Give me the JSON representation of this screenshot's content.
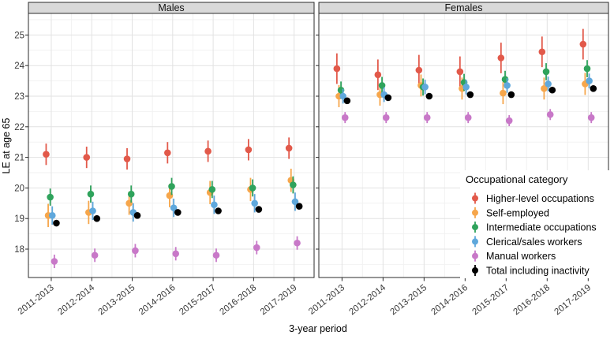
{
  "chart_data": {
    "type": "scatter",
    "subtype": "dodged pointrange with error bars, faceted",
    "title": "",
    "facets": [
      "Males",
      "Females"
    ],
    "categories": [
      "2011-2013",
      "2012-2014",
      "2013-2015",
      "2014-2016",
      "2015-2017",
      "2016-2018",
      "2017-2019"
    ],
    "xlabel": "3-year period",
    "ylabel": "LE at age 65",
    "ylim": [
      17.1,
      25.7
    ],
    "y_ticks": [
      18,
      19,
      20,
      21,
      22,
      23,
      24,
      25
    ],
    "grid": "major and minor gridlines on, white panel background, gray facet strips",
    "legend": {
      "title": "Occupational category",
      "position": "inside bottom-right of Females panel",
      "items": [
        {
          "label": "Higher-level occupations",
          "color": "#e2594a"
        },
        {
          "label": "Self-employed",
          "color": "#f6a64b"
        },
        {
          "label": "Intermediate occupations",
          "color": "#2fa35c"
        },
        {
          "label": "Clerical/sales workers",
          "color": "#5fa8dc"
        },
        {
          "label": "Manual workers",
          "color": "#c878c8"
        },
        {
          "label": "Total including inactivity",
          "color": "#000000"
        }
      ]
    },
    "panels": [
      {
        "facet": "Males",
        "series": [
          {
            "name": "Higher-level occupations",
            "color": "#e2594a",
            "values": [
              21.1,
              21.0,
              20.95,
              21.15,
              21.2,
              21.25,
              21.3
            ],
            "ci": 0.35
          },
          {
            "name": "Self-employed",
            "color": "#f6a64b",
            "values": [
              19.1,
              19.2,
              19.5,
              19.75,
              19.85,
              19.95,
              20.25
            ],
            "ci": 0.38
          },
          {
            "name": "Intermediate occupations",
            "color": "#2fa35c",
            "values": [
              19.7,
              19.8,
              19.8,
              20.05,
              19.95,
              20.0,
              20.1
            ],
            "ci": 0.28
          },
          {
            "name": "Clerical/sales workers",
            "color": "#5fa8dc",
            "values": [
              19.1,
              19.25,
              19.2,
              19.35,
              19.45,
              19.5,
              19.55
            ],
            "ci": 0.3
          },
          {
            "name": "Manual workers",
            "color": "#c878c8",
            "values": [
              17.6,
              17.8,
              17.95,
              17.85,
              17.8,
              18.05,
              18.2
            ],
            "ci": 0.22
          },
          {
            "name": "Total including inactivity",
            "color": "#000000",
            "values": [
              18.85,
              19.0,
              19.1,
              19.2,
              19.25,
              19.3,
              19.4
            ],
            "ci": 0.09
          }
        ]
      },
      {
        "facet": "Females",
        "series": [
          {
            "name": "Higher-level occupations",
            "color": "#e2594a",
            "values": [
              23.9,
              23.7,
              23.85,
              23.8,
              24.25,
              24.45,
              24.7
            ],
            "ci": 0.5
          },
          {
            "name": "Self-employed",
            "color": "#f6a64b",
            "values": [
              23.0,
              23.05,
              23.35,
              23.25,
              23.1,
              23.25,
              23.4
            ],
            "ci": 0.36
          },
          {
            "name": "Intermediate occupations",
            "color": "#2fa35c",
            "values": [
              23.2,
              23.35,
              23.3,
              23.45,
              23.55,
              23.8,
              23.9
            ],
            "ci": 0.28
          },
          {
            "name": "Clerical/sales workers",
            "color": "#5fa8dc",
            "values": [
              23.0,
              23.05,
              23.3,
              23.3,
              23.35,
              23.4,
              23.5
            ],
            "ci": 0.24
          },
          {
            "name": "Manual workers",
            "color": "#c878c8",
            "values": [
              22.3,
              22.3,
              22.3,
              22.3,
              22.2,
              22.4,
              22.3
            ],
            "ci": 0.18
          },
          {
            "name": "Total including inactivity",
            "color": "#000000",
            "values": [
              22.85,
              22.95,
              23.0,
              23.05,
              23.05,
              23.2,
              23.25
            ],
            "ci": 0.09
          }
        ]
      }
    ],
    "style": {
      "strip_fill": "#d9d9d9",
      "panel_border": "#2b2b2b",
      "grid_major": "#e2e2e2",
      "grid_minor": "#f2f2f2",
      "tick_label_color": "#383838",
      "point_radius": 4.3
    }
  }
}
